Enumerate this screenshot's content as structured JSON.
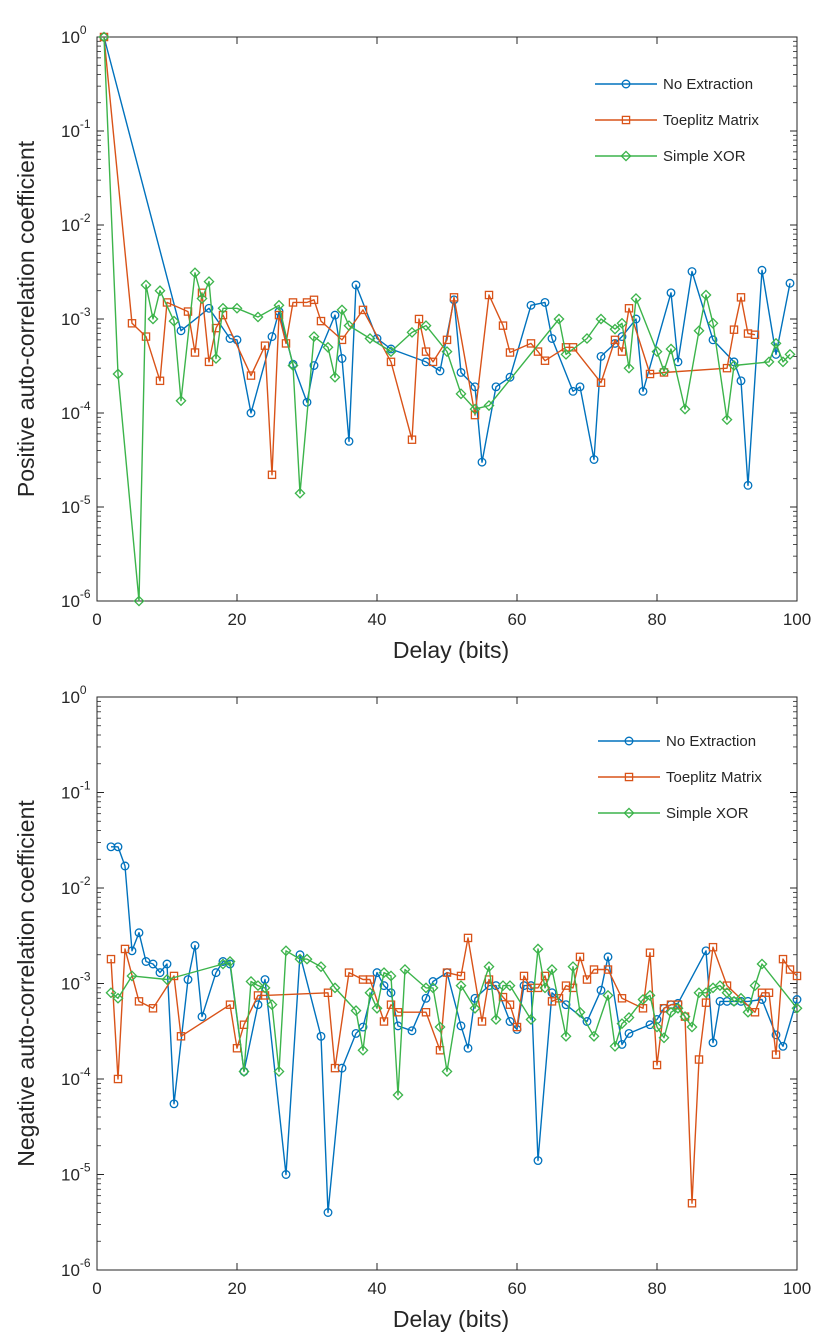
{
  "chart_data": [
    {
      "type": "line",
      "yscale": "log",
      "title": "",
      "xlabel": "Delay (bits)",
      "ylabel": "Positive auto-correlation coefficient",
      "xlim": [
        0,
        100
      ],
      "ylim_exp": [
        -6,
        0
      ],
      "xticks": [
        "0",
        "20",
        "40",
        "60",
        "80",
        "100"
      ],
      "ytick_exponents": [
        "0",
        "-1",
        "-2",
        "-3",
        "-4",
        "-5",
        "-6"
      ],
      "legend_position": "top-right",
      "series": [
        {
          "name": "No Extraction",
          "color": "#0072bd",
          "marker": "circle",
          "x": [
            1,
            12,
            16,
            19,
            20,
            22,
            25,
            26,
            28,
            30,
            31,
            34,
            35,
            36,
            37,
            40,
            42,
            47,
            49,
            51,
            52,
            54,
            55,
            57,
            59,
            62,
            64,
            65,
            68,
            69,
            71,
            72,
            74,
            75,
            77,
            78,
            82,
            83,
            85,
            88,
            91,
            92,
            93,
            95,
            97,
            99
          ],
          "y": [
            1,
            0.00075,
            0.0013,
            0.00062,
            0.0006,
            0.0001,
            0.00065,
            0.0012,
            0.00033,
            0.00013,
            0.00032,
            0.0011,
            0.00038,
            5e-05,
            0.0023,
            0.00062,
            0.00048,
            0.00035,
            0.00028,
            0.0016,
            0.00027,
            0.00019,
            3e-05,
            0.00019,
            0.00024,
            0.0014,
            0.0015,
            0.00062,
            0.00017,
            0.00019,
            3.2e-05,
            0.0004,
            0.00055,
            0.00065,
            0.001,
            0.00017,
            0.0019,
            0.00035,
            0.0032,
            0.0006,
            0.00035,
            0.00022,
            1.7e-05,
            0.0033,
            0.00042,
            0.0024
          ]
        },
        {
          "name": "Toeplitz Matrix",
          "color": "#d95319",
          "marker": "square",
          "x": [
            1,
            5,
            7,
            9,
            10,
            13,
            14,
            15,
            16,
            17,
            18,
            22,
            24,
            25,
            26,
            27,
            28,
            30,
            31,
            32,
            35,
            38,
            42,
            45,
            46,
            47,
            48,
            50,
            51,
            54,
            56,
            58,
            59,
            62,
            63,
            64,
            67,
            68,
            72,
            74,
            75,
            76,
            79,
            81,
            90,
            91,
            92,
            93,
            94
          ],
          "y": [
            1,
            0.0009,
            0.00065,
            0.00022,
            0.0015,
            0.0012,
            0.00044,
            0.0019,
            0.00035,
            0.0008,
            0.0011,
            0.00025,
            0.00052,
            2.2e-05,
            0.0011,
            0.00055,
            0.0015,
            0.0015,
            0.0016,
            0.00095,
            0.0006,
            0.00125,
            0.00035,
            5.2e-05,
            0.001,
            0.00045,
            0.00035,
            0.0006,
            0.0017,
            9.5e-05,
            0.0018,
            0.00085,
            0.00044,
            0.00055,
            0.00045,
            0.00036,
            0.0005,
            0.0005,
            0.00021,
            0.0006,
            0.00045,
            0.0013,
            0.00026,
            0.00027,
            0.0003,
            0.00077,
            0.0017,
            0.0007,
            0.00068
          ]
        },
        {
          "name": "Simple XOR",
          "color": "#3cb44b",
          "marker": "diamond",
          "x": [
            1,
            3,
            6,
            7,
            8,
            9,
            11,
            12,
            14,
            15,
            16,
            17,
            18,
            20,
            23,
            26,
            28,
            29,
            31,
            33,
            34,
            35,
            36,
            39,
            42,
            45,
            47,
            50,
            52,
            54,
            56,
            66,
            67,
            70,
            72,
            74,
            75,
            76,
            77,
            80,
            81,
            82,
            84,
            86,
            87,
            88,
            90,
            91,
            96,
            97,
            98,
            99
          ],
          "y": [
            1,
            0.00026,
            1e-06,
            0.0023,
            0.001,
            0.002,
            0.00095,
            0.000135,
            0.0031,
            0.00165,
            0.0025,
            0.00038,
            0.0013,
            0.0013,
            0.00105,
            0.0014,
            0.00032,
            1.4e-05,
            0.00065,
            0.0005,
            0.00024,
            0.00125,
            0.00085,
            0.00062,
            0.00045,
            0.00072,
            0.00085,
            0.00045,
            0.00016,
            0.00011,
            0.00012,
            0.001,
            0.00042,
            0.00062,
            0.001,
            0.00078,
            0.0009,
            0.0003,
            0.00165,
            0.00045,
            0.00028,
            0.00048,
            0.00011,
            0.00075,
            0.0018,
            0.0009,
            8.5e-05,
            0.00032,
            0.00035,
            0.00055,
            0.00035,
            0.00042
          ]
        }
      ]
    },
    {
      "type": "line",
      "yscale": "log",
      "title": "",
      "xlabel": "Delay (bits)",
      "ylabel": "Negative auto-correlation coefficient",
      "xlim": [
        0,
        100
      ],
      "ylim_exp": [
        -6,
        0
      ],
      "xticks": [
        "0",
        "20",
        "40",
        "60",
        "80",
        "100"
      ],
      "ytick_exponents": [
        "0",
        "-1",
        "-2",
        "-3",
        "-4",
        "-5",
        "-6"
      ],
      "legend_position": "top-right",
      "series": [
        {
          "name": "No Extraction",
          "color": "#0072bd",
          "marker": "circle",
          "x": [
            2,
            3,
            4,
            5,
            6,
            7,
            8,
            9,
            10,
            11,
            13,
            14,
            15,
            17,
            18,
            19,
            21,
            23,
            24,
            27,
            29,
            32,
            33,
            35,
            37,
            38,
            40,
            41,
            42,
            43,
            45,
            47,
            48,
            50,
            52,
            53,
            54,
            56,
            57,
            59,
            60,
            61,
            62,
            63,
            65,
            67,
            70,
            72,
            73,
            75,
            76,
            79,
            80,
            81,
            82,
            83,
            87,
            88,
            89,
            90,
            91,
            92,
            93,
            95,
            97,
            98,
            100
          ],
          "y": [
            0.027,
            0.027,
            0.017,
            0.0022,
            0.0034,
            0.0017,
            0.0016,
            0.0013,
            0.0016,
            5.5e-05,
            0.0011,
            0.0025,
            0.00045,
            0.0013,
            0.0017,
            0.0016,
            0.00012,
            0.0006,
            0.0011,
            1e-05,
            0.002,
            0.00028,
            4e-06,
            0.00013,
            0.0003,
            0.00035,
            0.0013,
            0.00095,
            0.0008,
            0.00036,
            0.00032,
            0.0007,
            0.00105,
            0.0013,
            0.00036,
            0.00021,
            0.0007,
            0.00095,
            0.00095,
            0.0004,
            0.00033,
            0.00095,
            0.00095,
            1.4e-05,
            0.0008,
            0.0006,
            0.0004,
            0.00085,
            0.0019,
            0.00023,
            0.0003,
            0.00037,
            0.00042,
            0.00055,
            0.0006,
            0.00062,
            0.0022,
            0.00024,
            0.00065,
            0.00065,
            0.00065,
            0.00065,
            0.00065,
            0.00068,
            0.00029,
            0.00022,
            0.00068
          ]
        },
        {
          "name": "Toeplitz Matrix",
          "color": "#d95319",
          "marker": "square",
          "x": [
            2,
            3,
            4,
            6,
            8,
            11,
            12,
            19,
            20,
            21,
            23,
            24,
            33,
            34,
            36,
            38,
            39,
            41,
            42,
            43,
            47,
            49,
            50,
            52,
            53,
            55,
            56,
            58,
            59,
            60,
            61,
            62,
            63,
            64,
            65,
            66,
            67,
            68,
            69,
            70,
            71,
            73,
            75,
            78,
            79,
            80,
            81,
            82,
            83,
            84,
            85,
            86,
            87,
            88,
            90,
            94,
            95,
            96,
            97,
            98,
            99,
            100
          ],
          "y": [
            0.0018,
            0.0001,
            0.0023,
            0.00065,
            0.00055,
            0.0012,
            0.00028,
            0.0006,
            0.00021,
            0.00037,
            0.00075,
            0.00075,
            0.0008,
            0.00013,
            0.0013,
            0.0011,
            0.0011,
            0.0004,
            0.0006,
            0.0005,
            0.0005,
            0.0002,
            0.0013,
            0.0012,
            0.003,
            0.0004,
            0.0011,
            0.00072,
            0.0006,
            0.00035,
            0.0012,
            0.0009,
            0.0009,
            0.0012,
            0.00065,
            0.0007,
            0.00095,
            0.0009,
            0.0019,
            0.0011,
            0.0014,
            0.0014,
            0.0007,
            0.00055,
            0.0021,
            0.00014,
            0.00055,
            0.0006,
            0.0006,
            0.00045,
            5e-06,
            0.00016,
            0.00063,
            0.0024,
            0.00095,
            0.0005,
            0.0008,
            0.0008,
            0.00018,
            0.0018,
            0.0014,
            0.0012
          ]
        },
        {
          "name": "Simple XOR",
          "color": "#3cb44b",
          "marker": "diamond",
          "x": [
            2,
            3,
            5,
            10,
            18,
            19,
            21,
            22,
            23,
            24,
            25,
            26,
            27,
            29,
            30,
            32,
            34,
            37,
            38,
            39,
            40,
            41,
            42,
            43,
            44,
            47,
            48,
            49,
            50,
            52,
            54,
            56,
            57,
            58,
            59,
            62,
            63,
            64,
            65,
            67,
            68,
            69,
            71,
            73,
            74,
            75,
            76,
            78,
            79,
            80,
            81,
            82,
            83,
            84,
            85,
            86,
            87,
            88,
            89,
            90,
            91,
            92,
            93,
            94,
            95,
            100
          ],
          "y": [
            0.0008,
            0.0007,
            0.0012,
            0.0011,
            0.0016,
            0.0017,
            0.00012,
            0.00105,
            0.00095,
            0.0009,
            0.0006,
            0.00012,
            0.0022,
            0.0018,
            0.0018,
            0.0015,
            0.0009,
            0.00052,
            0.0002,
            0.0008,
            0.00055,
            0.0013,
            0.0012,
            6.8e-05,
            0.0014,
            0.0009,
            0.0009,
            0.00035,
            0.00012,
            0.00095,
            0.00055,
            0.0015,
            0.00042,
            0.00095,
            0.00095,
            0.00042,
            0.0023,
            0.0009,
            0.0014,
            0.00028,
            0.0015,
            0.0005,
            0.00028,
            0.00075,
            0.00022,
            0.00038,
            0.00044,
            0.00068,
            0.00075,
            0.00035,
            0.00027,
            0.0005,
            0.00055,
            0.00045,
            0.00035,
            0.0008,
            0.0008,
            0.0009,
            0.00095,
            0.0008,
            0.00065,
            0.0007,
            0.0005,
            0.00095,
            0.0016,
            0.00055
          ]
        }
      ]
    }
  ]
}
